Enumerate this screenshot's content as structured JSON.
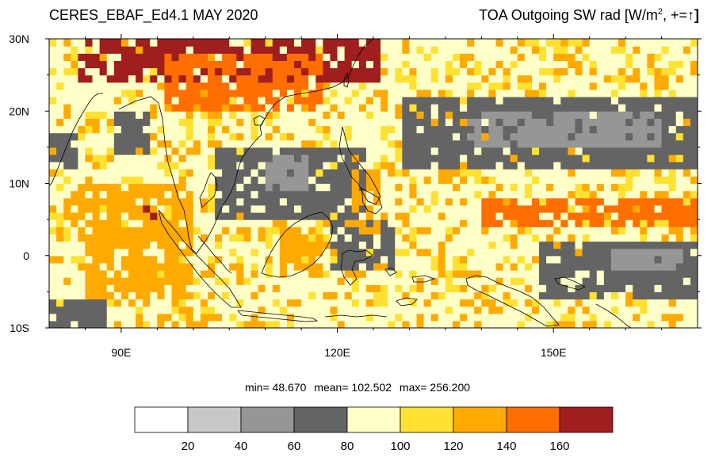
{
  "header": {
    "left_title": "CERES_EBAF_Ed4.1 MAY 2020",
    "right_title_prefix": "TOA Outgoing SW rad [W/m",
    "right_title_sup": "2",
    "right_title_suffix": ", +=",
    "right_title_arrow": "↑",
    "right_title_close": "]"
  },
  "map": {
    "lat_range": [
      -10,
      30
    ],
    "lon_range": [
      80,
      170
    ],
    "lat_ticks": [
      {
        "value": 30,
        "label": "30N"
      },
      {
        "value": 20,
        "label": "20N"
      },
      {
        "value": 10,
        "label": "10N"
      },
      {
        "value": 0,
        "label": "0"
      },
      {
        "value": -10,
        "label": "10S"
      }
    ],
    "lon_ticks": [
      {
        "value": 90,
        "label": "90E"
      },
      {
        "value": 120,
        "label": "120E"
      },
      {
        "value": 150,
        "label": "150E"
      }
    ],
    "grid_resolution_deg": 1,
    "cloud_bands": [
      {
        "lat0": 12,
        "lat1": 22,
        "lon0": 129,
        "lon1": 171,
        "level": 3
      },
      {
        "lat0": 15,
        "lat1": 20,
        "lon0": 138,
        "lon1": 165,
        "level": 2
      },
      {
        "lat0": 5,
        "lat1": 15,
        "lon0": 103,
        "lon1": 124,
        "level": 3
      },
      {
        "lat0": 9,
        "lat1": 14,
        "lon0": 110,
        "lon1": 116,
        "level": 2
      },
      {
        "lat0": -6,
        "lat1": 2,
        "lon0": 148,
        "lon1": 171,
        "level": 3
      },
      {
        "lat0": -2,
        "lat1": 1,
        "lon0": 158,
        "lon1": 168,
        "level": 2
      },
      {
        "lat0": 12,
        "lat1": 17,
        "lon0": 80,
        "lon1": 84,
        "level": 3
      },
      {
        "lat0": 14,
        "lat1": 20,
        "lon0": 89,
        "lon1": 94,
        "level": 3
      },
      {
        "lat0": -10,
        "lat1": -6,
        "lon0": 80,
        "lon1": 88,
        "level": 3
      },
      {
        "lat0": -2,
        "lat1": 5,
        "lon0": 119,
        "lon1": 128,
        "level": 3
      }
    ],
    "bright_bands": [
      {
        "lat0": 24,
        "lat1": 30,
        "lon0": 84,
        "lon1": 126,
        "level": 8
      },
      {
        "lat0": 20,
        "lat1": 28,
        "lon0": 96,
        "lon1": 118,
        "level": 7
      },
      {
        "lat0": 4,
        "lat1": 8,
        "lon0": 140,
        "lon1": 171,
        "level": 7
      },
      {
        "lat0": 2,
        "lat1": 10,
        "lon0": 83,
        "lon1": 100,
        "level": 6
      },
      {
        "lat0": 5,
        "lat1": 7,
        "lon0": 93,
        "lon1": 95,
        "level": 8
      },
      {
        "lat0": -6,
        "lat1": 4,
        "lon0": 85,
        "lon1": 100,
        "level": 6
      },
      {
        "lat0": -3,
        "lat1": 4,
        "lon0": 112,
        "lon1": 118,
        "level": 6
      },
      {
        "lat0": 3,
        "lat1": 12,
        "lon0": 122,
        "lon1": 126,
        "level": 6
      }
    ]
  },
  "stats": {
    "min_label": "min=",
    "min_value": "48.670",
    "mean_label": "mean=",
    "mean_value": "102.502",
    "max_label": "max=",
    "max_value": "256.200"
  },
  "colorbar": {
    "colors": [
      "#ffffff",
      "#c8c8c8",
      "#969696",
      "#646464",
      "#ffffc8",
      "#ffe132",
      "#ffaa00",
      "#ff6e00",
      "#a01e1e"
    ],
    "tick_labels": [
      "20",
      "40",
      "60",
      "80",
      "100",
      "120",
      "140",
      "160"
    ]
  }
}
